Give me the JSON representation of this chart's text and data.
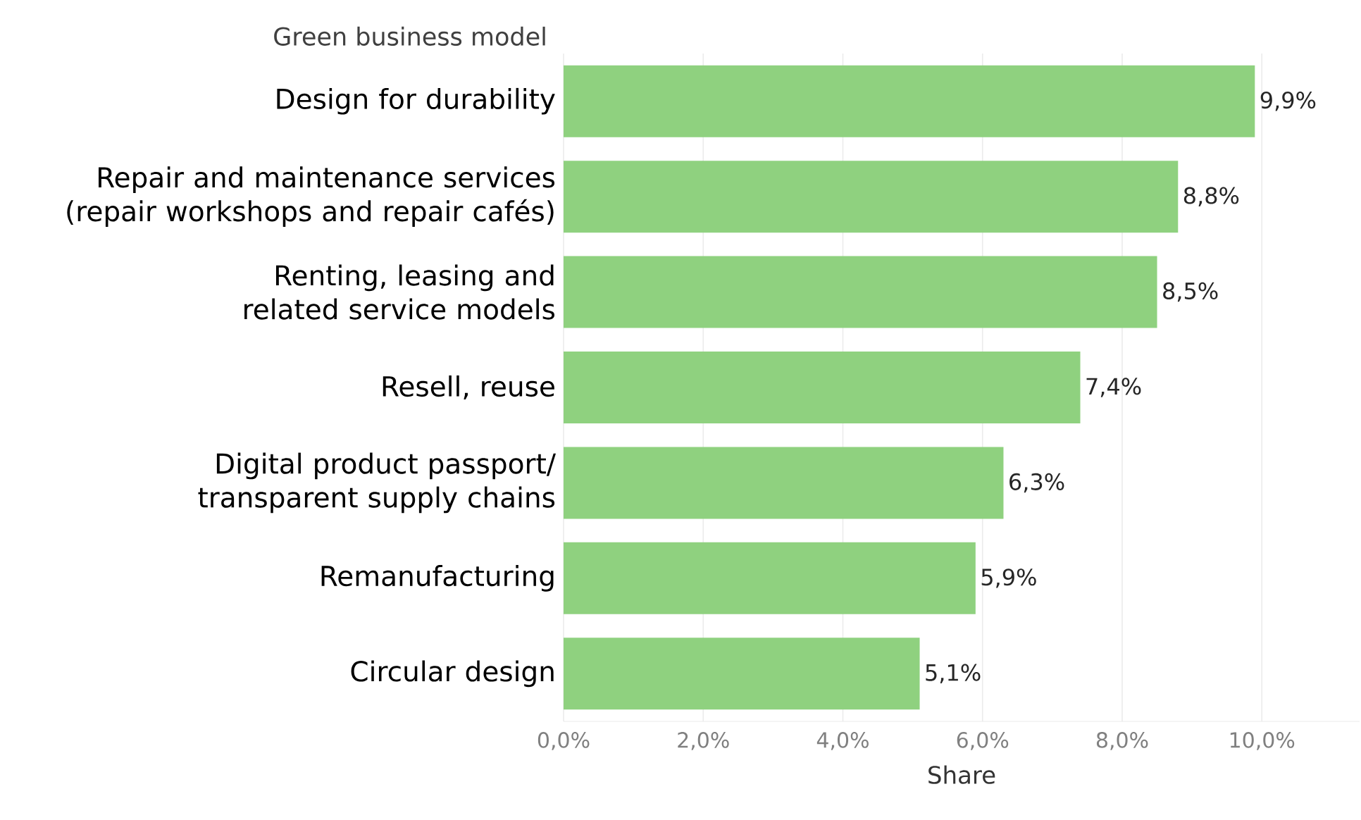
{
  "chart_data": {
    "type": "bar",
    "orientation": "horizontal",
    "ylabel": "Green business model",
    "xlabel": "Share",
    "categories": [
      "Design for durability",
      "Repair and maintenance services (repair workshops and repair cafés)",
      "Renting, leasing and related service models",
      "Resell, reuse",
      "Digital product passport/ transparent supply chains",
      "Remanufacturing",
      "Circular design"
    ],
    "values": [
      9.9,
      8.8,
      8.5,
      7.4,
      6.3,
      5.9,
      5.1
    ],
    "value_labels": [
      "9,9%",
      "8,8%",
      "8,5%",
      "7,4%",
      "6,3%",
      "5,9%",
      "5,1%"
    ],
    "color": "#8fd17f",
    "xlim": [
      0,
      11.4
    ],
    "xticks": [
      {
        "value": 0,
        "label": "0,0%"
      },
      {
        "value": 2,
        "label": "2,0%"
      },
      {
        "value": 4,
        "label": "4,0%"
      },
      {
        "value": 6,
        "label": "6,0%"
      },
      {
        "value": 8,
        "label": "8,0%"
      },
      {
        "value": 10,
        "label": "10,0%"
      }
    ],
    "grid": "x"
  }
}
